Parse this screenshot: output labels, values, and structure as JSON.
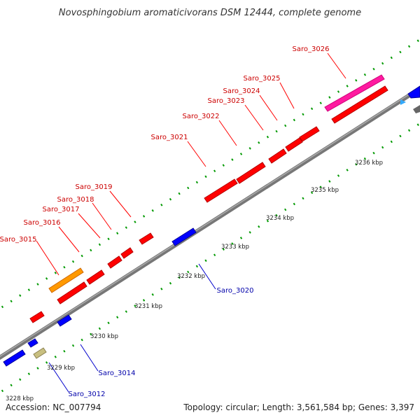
{
  "title": "Novosphingobium aromaticivorans DSM 12444, complete genome",
  "footer": {
    "accession": "Accession: NC_007794",
    "summary": "Topology: circular; Length: 3,561,584 bp; Genes: 3,397"
  },
  "colors": {
    "forward_gene": "#ff0000",
    "reverse_gene": "#0000ff",
    "forward_label": "#cc0000",
    "reverse_label": "#0000aa",
    "backbone": "#888888",
    "tick_dots": "#009900",
    "special_orange": "#ff8c00",
    "special_magenta": "#ff1aa0",
    "special_khaki": "#c8bf80"
  },
  "scale_ticks": [
    "3228 kbp",
    "3229 kbp",
    "3230 kbp",
    "3231 kbp",
    "3232 kbp",
    "3233 kbp",
    "3234 kbp",
    "3235 kbp",
    "3236 kbp"
  ],
  "forward_labels": [
    "Saro_3015",
    "Saro_3016",
    "Saro_3017",
    "Saro_3018",
    "Saro_3019",
    "Saro_3021",
    "Saro_3022",
    "Saro_3023",
    "Saro_3024",
    "Saro_3025",
    "Saro_3026"
  ],
  "reverse_labels": [
    "Saro_3012",
    "Saro_3014",
    "Saro_3020"
  ]
}
